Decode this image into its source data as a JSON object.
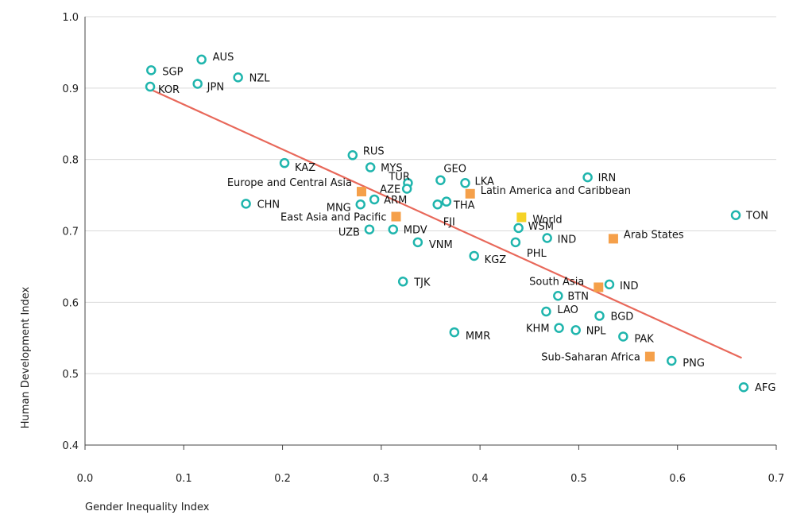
{
  "chart_data": {
    "type": "scatter",
    "xlabel": "Gender Inequality Index",
    "ylabel": "Human Development Index",
    "xlim": [
      0.0,
      0.7
    ],
    "ylim": [
      0.4,
      1.0
    ],
    "x_ticks": [
      "0.0",
      "0.1",
      "0.2",
      "0.3",
      "0.4",
      "0.5",
      "0.6",
      "0.7"
    ],
    "y_ticks": [
      "0.4",
      "0.5",
      "0.6",
      "0.7",
      "0.8",
      "0.9",
      "1.0"
    ],
    "grid": "horizontal",
    "colors": {
      "country": "#1fb5ad",
      "region": "#f5a04a",
      "world": "#f5d327",
      "trend": "#e8685a",
      "grid": "#d9d9d9",
      "axis": "#444444"
    },
    "trendline": {
      "x": [
        0.065,
        0.665
      ],
      "y": [
        0.899,
        0.522
      ]
    },
    "series": [
      {
        "kind": "country",
        "points": [
          {
            "label": "SGP",
            "x": 0.067,
            "y": 0.925
          },
          {
            "label": "AUS",
            "x": 0.118,
            "y": 0.94
          },
          {
            "label": "NZL",
            "x": 0.155,
            "y": 0.915
          },
          {
            "label": "KOR",
            "x": 0.066,
            "y": 0.902
          },
          {
            "label": "JPN",
            "x": 0.114,
            "y": 0.906
          },
          {
            "label": "KAZ",
            "x": 0.202,
            "y": 0.795
          },
          {
            "label": "RUS",
            "x": 0.271,
            "y": 0.806
          },
          {
            "label": "MYS",
            "x": 0.289,
            "y": 0.789
          },
          {
            "label": "TUR",
            "x": 0.327,
            "y": 0.767
          },
          {
            "label": "GEO",
            "x": 0.36,
            "y": 0.771
          },
          {
            "label": "LKA",
            "x": 0.385,
            "y": 0.767
          },
          {
            "label": "IRN",
            "x": 0.509,
            "y": 0.775
          },
          {
            "label": "AZE",
            "x": 0.326,
            "y": 0.759
          },
          {
            "label": "ARM",
            "x": 0.293,
            "y": 0.744
          },
          {
            "label": "THA",
            "x": 0.366,
            "y": 0.741
          },
          {
            "label": "CHN",
            "x": 0.163,
            "y": 0.738
          },
          {
            "label": "MNG",
            "x": 0.279,
            "y": 0.737
          },
          {
            "label": "FJI",
            "x": 0.357,
            "y": 0.737
          },
          {
            "label": "TON",
            "x": 0.659,
            "y": 0.722
          },
          {
            "label": "WSM",
            "x": 0.439,
            "y": 0.704
          },
          {
            "label": "UZB",
            "x": 0.288,
            "y": 0.702
          },
          {
            "label": "MDV",
            "x": 0.312,
            "y": 0.702
          },
          {
            "label": "IND",
            "x": 0.468,
            "y": 0.69
          },
          {
            "label": "VNM",
            "x": 0.337,
            "y": 0.684
          },
          {
            "label": "PHL",
            "x": 0.436,
            "y": 0.684
          },
          {
            "label": "KGZ",
            "x": 0.394,
            "y": 0.665
          },
          {
            "label": "TJK",
            "x": 0.322,
            "y": 0.629
          },
          {
            "label": "IND",
            "x": 0.531,
            "y": 0.625
          },
          {
            "label": "BTN",
            "x": 0.479,
            "y": 0.609
          },
          {
            "label": "LAO",
            "x": 0.467,
            "y": 0.587
          },
          {
            "label": "BGD",
            "x": 0.521,
            "y": 0.581
          },
          {
            "label": "KHM",
            "x": 0.48,
            "y": 0.564
          },
          {
            "label": "NPL",
            "x": 0.497,
            "y": 0.561
          },
          {
            "label": "MMR",
            "x": 0.374,
            "y": 0.558
          },
          {
            "label": "PAK",
            "x": 0.545,
            "y": 0.552
          },
          {
            "label": "PNG",
            "x": 0.594,
            "y": 0.518
          },
          {
            "label": "AFG",
            "x": 0.667,
            "y": 0.481
          }
        ]
      },
      {
        "kind": "region",
        "points": [
          {
            "label": "Europe and Central Asia",
            "x": 0.28,
            "y": 0.755
          },
          {
            "label": "Latin America and Caribbean",
            "x": 0.39,
            "y": 0.752
          },
          {
            "label": "East Asia and Pacific",
            "x": 0.315,
            "y": 0.72
          },
          {
            "label": "Arab States",
            "x": 0.535,
            "y": 0.689
          },
          {
            "label": "South Asia",
            "x": 0.52,
            "y": 0.621
          },
          {
            "label": "Sub-Saharan Africa",
            "x": 0.572,
            "y": 0.524
          }
        ]
      },
      {
        "kind": "world",
        "points": [
          {
            "label": "World",
            "x": 0.442,
            "y": 0.719
          }
        ]
      }
    ]
  }
}
